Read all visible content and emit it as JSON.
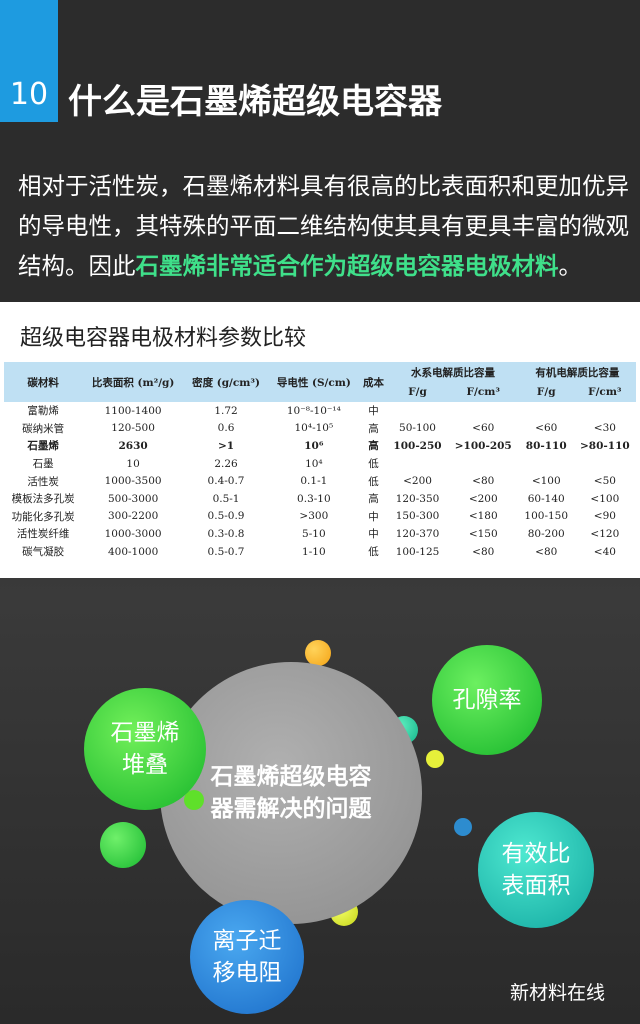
{
  "header": {
    "number": "10",
    "title": "什么是石墨烯超级电容器"
  },
  "intro": {
    "text": "相对于活性炭，石墨烯材料具有很高的比表面积和更加优异的导电性，其特殊的平面二维结构使其具有更具丰富的微观结构。因此",
    "highlight": "石墨烯非常适合作为超级电容器电极材料",
    "end": "。"
  },
  "table": {
    "title": "超级电容器电极材料参数比较",
    "header": [
      "碳材料",
      "比表面积 (m²/g)",
      "密度 (g/cm³)",
      "导电性 (S/cm)",
      "成本",
      "水系电解质比容量",
      "有机电解质比容量"
    ],
    "subheader": [
      "F/g",
      "F/cm³",
      "F/g",
      "F/cm³"
    ],
    "rows": [
      [
        "富勒烯",
        "1100-1400",
        "1.72",
        "10⁻⁸-10⁻¹⁴",
        "中",
        null,
        null,
        null,
        null
      ],
      [
        "碳纳米管",
        "120-500",
        "0.6",
        "10⁴-10⁵",
        "高",
        "50-100",
        "<60",
        "<60",
        "<30"
      ],
      [
        "石墨烯",
        "2630",
        ">1",
        "10⁶",
        "高",
        "100-250",
        ">100-205",
        "80-110",
        ">80-110"
      ],
      [
        "石墨",
        "10",
        "2.26",
        "10⁴",
        "低",
        null,
        null,
        null,
        null
      ],
      [
        "活性炭",
        "1000-3500",
        "0.4-0.7",
        "0.1-1",
        "低",
        "<200",
        "<80",
        "<100",
        "<50"
      ],
      [
        "模板法多孔炭",
        "500-3000",
        "0.5-1",
        "0.3-10",
        "高",
        "120-350",
        "<200",
        "60-140",
        "<100"
      ],
      [
        "功能化多孔炭",
        "300-2200",
        "0.5-0.9",
        ">300",
        "中",
        "150-300",
        "<180",
        "100-150",
        "<90"
      ],
      [
        "活性炭纤维",
        "1000-3000",
        "0.3-0.8",
        "5-10",
        "中",
        "120-370",
        "<150",
        "80-200",
        "<120"
      ],
      [
        "碳气凝胶",
        "400-1000",
        "0.5-0.7",
        "1-10",
        "低",
        "100-125",
        "<80",
        "<80",
        "<40"
      ]
    ]
  },
  "diagram": {
    "center": "石墨烯超级电容器需解决的问题",
    "bubbles": [
      "石墨烯堆叠",
      "孔隙率",
      "有效比表面积",
      "离子迁移电阻"
    ]
  },
  "footer": {
    "brand": "新材料在线"
  }
}
